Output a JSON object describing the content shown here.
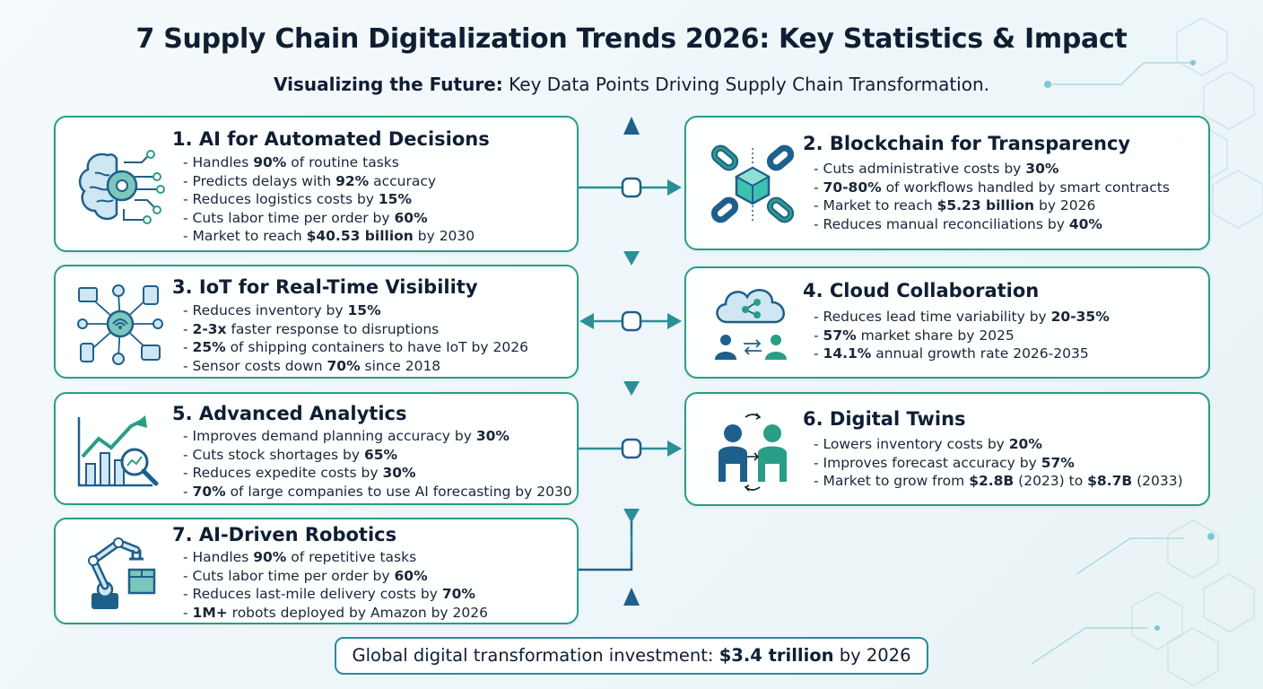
{
  "header": {
    "title": "7 Supply Chain Digitalization Trends 2026: Key Statistics & Impact",
    "subtitle_bold": "Visualizing the Future:",
    "subtitle_rest": " Key Data Points Driving Supply Chain Transformation."
  },
  "colors": {
    "accent_teal": "#2a9d86",
    "accent_blue": "#1f5f8b",
    "text_dark": "#0f1e33"
  },
  "trends": [
    {
      "title": "1. AI for Automated Decisions",
      "icon": "brain-circuit-icon",
      "stats": [
        {
          "pre": "Handles ",
          "bold": "90%",
          "post": " of routine tasks"
        },
        {
          "pre": "Predicts delays with ",
          "bold": "92%",
          "post": " accuracy"
        },
        {
          "pre": "Reduces logistics costs by ",
          "bold": "15%",
          "post": ""
        },
        {
          "pre": "Cuts labor time per order by ",
          "bold": "60%",
          "post": ""
        },
        {
          "pre": "Market to reach ",
          "bold": "$40.53 billion",
          "post": " by 2030"
        }
      ]
    },
    {
      "title": "2. Blockchain for Transparency",
      "icon": "blockchain-icon",
      "stats": [
        {
          "pre": "Cuts administrative costs by ",
          "bold": "30%",
          "post": ""
        },
        {
          "pre": "",
          "bold": "70-80%",
          "post": " of workflows handled by smart contracts"
        },
        {
          "pre": "Market to reach ",
          "bold": "$5.23 billion",
          "post": " by 2026"
        },
        {
          "pre": "Reduces manual reconciliations by ",
          "bold": "40%",
          "post": ""
        }
      ]
    },
    {
      "title": "3. IoT for Real-Time Visibility",
      "icon": "iot-network-icon",
      "stats": [
        {
          "pre": "Reduces inventory by ",
          "bold": "15%",
          "post": ""
        },
        {
          "pre": "",
          "bold": "2-3x",
          "post": " faster response to disruptions"
        },
        {
          "pre": "",
          "bold": "25%",
          "post": " of shipping containers to have IoT by 2026"
        },
        {
          "pre": "Sensor costs down ",
          "bold": "70%",
          "post": " since 2018"
        }
      ]
    },
    {
      "title": "4. Cloud Collaboration",
      "icon": "cloud-collaboration-icon",
      "stats": [
        {
          "pre": "Reduces lead time variability by ",
          "bold": "20-35%",
          "post": ""
        },
        {
          "pre": "",
          "bold": "57%",
          "post": " market share by 2025"
        },
        {
          "pre": "",
          "bold": "14.1%",
          "post": " annual growth rate 2026-2035"
        }
      ]
    },
    {
      "title": "5. Advanced Analytics",
      "icon": "analytics-chart-icon",
      "stats": [
        {
          "pre": "Improves demand planning accuracy by ",
          "bold": "30%",
          "post": ""
        },
        {
          "pre": "Cuts stock shortages by ",
          "bold": "65%",
          "post": ""
        },
        {
          "pre": "Reduces expedite costs by ",
          "bold": "30%",
          "post": ""
        },
        {
          "pre": "",
          "bold": "70%",
          "post": " of large companies to use AI forecasting by 2030"
        }
      ]
    },
    {
      "title": "6. Digital Twins",
      "icon": "digital-twins-icon",
      "stats": [
        {
          "pre": "Lowers inventory costs by ",
          "bold": "20%",
          "post": ""
        },
        {
          "pre": "Improves forecast accuracy by ",
          "bold": "57%",
          "post": ""
        },
        {
          "pre": "Market to grow from ",
          "bold": "$2.8B",
          "post": " (2023) to ",
          "bold2": "$8.7B",
          "post2": " (2033)"
        }
      ]
    },
    {
      "title": "7. AI-Driven Robotics",
      "icon": "robot-arm-icon",
      "stats": [
        {
          "pre": "Handles ",
          "bold": "90%",
          "post": " of repetitive tasks"
        },
        {
          "pre": "Cuts labor time per order by ",
          "bold": "60%",
          "post": ""
        },
        {
          "pre": "Reduces last-mile delivery costs by ",
          "bold": "70%",
          "post": ""
        },
        {
          "pre": "",
          "bold": "1M+",
          "post": " robots deployed by Amazon by 2026"
        }
      ]
    }
  ],
  "footer": {
    "pre": "Global digital transformation investment: ",
    "bold": "$3.4 trillion",
    "post": " by 2026"
  }
}
